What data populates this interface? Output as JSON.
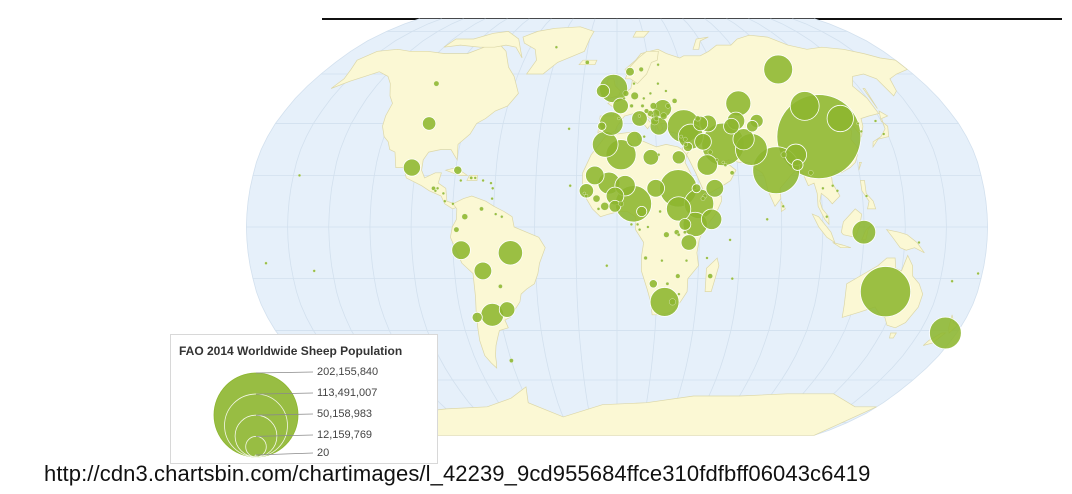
{
  "map": {
    "projection": "robinson",
    "colors": {
      "ocean": "#e6f0fa",
      "land": "#fbf8d4",
      "border": "#dcd7a8",
      "graticule": "#d2e0ee",
      "bubble": "#8db62f",
      "bubble_stroke": "#ffffff"
    }
  },
  "legend": {
    "title": "FAO 2014 Worldwide Sheep Population",
    "entries": [
      {
        "label": "202,155,840",
        "value": 202155840
      },
      {
        "label": "113,491,007",
        "value": 113491007
      },
      {
        "label": "50,158,983",
        "value": 50158983
      },
      {
        "label": "12,159,769",
        "value": 12159769
      },
      {
        "label": "20",
        "value": 20
      }
    ]
  },
  "chart_data": {
    "type": "bubble-map",
    "title": "FAO 2014 Worldwide Sheep Population",
    "size_scale": "sqrt",
    "max_value": 202155840,
    "points": [
      {
        "lon": 104,
        "lat": 35,
        "value": 202155840
      },
      {
        "lon": 79,
        "lat": 22,
        "value": 63000000
      },
      {
        "lon": 134,
        "lat": -25,
        "value": 72600000
      },
      {
        "lon": 54,
        "lat": 32,
        "value": 52000000
      },
      {
        "lon": 8,
        "lat": 9,
        "value": 38000000
      },
      {
        "lon": 30,
        "lat": 15,
        "value": 40000000
      },
      {
        "lon": 35,
        "lat": 39,
        "value": 31000000
      },
      {
        "lon": 68,
        "lat": 30,
        "value": 29000000
      },
      {
        "lon": 2,
        "lat": 28,
        "value": 26000000
      },
      {
        "lon": -2,
        "lat": 54,
        "value": 23000000
      },
      {
        "lon": 100,
        "lat": 62,
        "value": 24000000
      },
      {
        "lon": 174,
        "lat": -41,
        "value": 29000000
      },
      {
        "lon": 40,
        "lat": 9,
        "value": 25000000
      },
      {
        "lon": 46,
        "lat": 3,
        "value": 12000000
      },
      {
        "lon": 38,
        "lat": 1,
        "value": 17000000
      },
      {
        "lon": 24,
        "lat": -29,
        "value": 24000000
      },
      {
        "lon": 67,
        "lat": 48,
        "value": 18000000
      },
      {
        "lon": 65,
        "lat": 34,
        "value": 13000000
      },
      {
        "lon": 103,
        "lat": 47,
        "value": 24000000
      },
      {
        "lon": 90,
        "lat": 28,
        "value": 13000000
      },
      {
        "lon": 35,
        "lat": -6,
        "value": 7000000
      },
      {
        "lon": -52,
        "lat": -10,
        "value": 17000000
      },
      {
        "lon": -64,
        "lat": -34,
        "value": 15000000
      },
      {
        "lon": -6,
        "lat": 32,
        "value": 19000000
      },
      {
        "lon": 4,
        "lat": 16,
        "value": 12000000
      },
      {
        "lon": -4,
        "lat": 17,
        "value": 14000000
      },
      {
        "lon": -11,
        "lat": 20,
        "value": 10000000
      },
      {
        "lon": 44,
        "lat": 33,
        "value": 8000000
      },
      {
        "lon": 45,
        "lat": 24,
        "value": 12000000
      },
      {
        "lon": 19,
        "lat": 15,
        "value": 9000000
      },
      {
        "lon": 9,
        "lat": 34,
        "value": 7000000
      },
      {
        "lon": 17,
        "lat": 27,
        "value": 7000000
      },
      {
        "lon": 31,
        "lat": 27,
        "value": 5000000
      },
      {
        "lon": -3,
        "lat": 40,
        "value": 16000000
      },
      {
        "lon": 12,
        "lat": 42,
        "value": 7000000
      },
      {
        "lon": 22,
        "lat": 39,
        "value": 9000000
      },
      {
        "lon": 44,
        "lat": 40,
        "value": 6000000
      },
      {
        "lon": 60,
        "lat": 39,
        "value": 7000000
      },
      {
        "lon": 74,
        "lat": 41,
        "value": 5000000
      },
      {
        "lon": 63,
        "lat": 41,
        "value": 9000000
      },
      {
        "lon": 48,
        "lat": 40,
        "value": 8000000
      },
      {
        "lon": 119,
        "lat": 42,
        "value": 20000000
      },
      {
        "lon": 84,
        "lat": 28,
        "value": 1000000
      },
      {
        "lon": 120,
        "lat": -2,
        "value": 16000000
      },
      {
        "lon": -99,
        "lat": 40,
        "value": 5200000
      },
      {
        "lon": -102,
        "lat": 23,
        "value": 8500000
      },
      {
        "lon": -74,
        "lat": 4,
        "value": 1000000
      },
      {
        "lon": -72,
        "lat": -35,
        "value": 3000000
      },
      {
        "lon": -56,
        "lat": -32,
        "value": 7000000
      },
      {
        "lon": -66,
        "lat": -17,
        "value": 9000000
      },
      {
        "lon": -76,
        "lat": -9,
        "value": 10000000
      },
      {
        "lon": 46,
        "lat": -19,
        "value": 700000
      },
      {
        "lon": 14,
        "lat": -12,
        "value": 400000
      },
      {
        "lon": 30,
        "lat": -19,
        "value": 600000
      },
      {
        "lon": 18,
        "lat": -22,
        "value": 2000000
      },
      {
        "lon": 25,
        "lat": -22,
        "value": 300000
      },
      {
        "lon": 22,
        "lat": -13,
        "value": 100000
      },
      {
        "lon": 34,
        "lat": -13,
        "value": 200000
      },
      {
        "lon": 29,
        "lat": -2,
        "value": 700000
      },
      {
        "lon": 33,
        "lat": 1,
        "value": 4000000
      },
      {
        "lon": 33,
        "lat": -2,
        "value": 300000
      },
      {
        "lon": 24,
        "lat": -3,
        "value": 900000
      },
      {
        "lon": 15,
        "lat": 0,
        "value": 100000
      },
      {
        "lon": 21,
        "lat": 6,
        "value": 250000
      },
      {
        "lon": 12,
        "lat": 6,
        "value": 3000000
      },
      {
        "lon": 2,
        "lat": 9,
        "value": 800000
      },
      {
        "lon": -1,
        "lat": 8,
        "value": 4000000
      },
      {
        "lon": -6,
        "lat": 8,
        "value": 1800000
      },
      {
        "lon": -1,
        "lat": 12,
        "value": 9000000
      },
      {
        "lon": -10,
        "lat": 11,
        "value": 1400000
      },
      {
        "lon": -15,
        "lat": 14,
        "value": 6000000
      },
      {
        "lon": -16,
        "lat": 13,
        "value": 200000
      },
      {
        "lon": -9,
        "lat": 7,
        "value": 250000
      },
      {
        "lon": -15,
        "lat": 12,
        "value": 350000
      },
      {
        "lon": 43,
        "lat": 12,
        "value": 500000
      },
      {
        "lon": 39,
        "lat": 15,
        "value": 2300000
      },
      {
        "lon": 48,
        "lat": 15,
        "value": 9000000
      },
      {
        "lon": 57,
        "lat": 21,
        "value": 500000
      },
      {
        "lon": 54,
        "lat": 24,
        "value": 300000
      },
      {
        "lon": 36,
        "lat": 31,
        "value": 2500000
      },
      {
        "lon": 38,
        "lat": 35,
        "value": 18000000
      },
      {
        "lon": 2,
        "lat": 47,
        "value": 7000000
      },
      {
        "lon": 10,
        "lat": 51,
        "value": 1600000
      },
      {
        "lon": 19,
        "lat": 52,
        "value": 200000
      },
      {
        "lon": 25,
        "lat": 46,
        "value": 9000000
      },
      {
        "lon": 32,
        "lat": 49,
        "value": 700000
      },
      {
        "lon": 20,
        "lat": 47,
        "value": 1200000
      },
      {
        "lon": 25,
        "lat": 43,
        "value": 1300000
      },
      {
        "lon": 21,
        "lat": 44,
        "value": 1700000
      },
      {
        "lon": 16,
        "lat": 45,
        "value": 600000
      },
      {
        "lon": 28,
        "lat": 53,
        "value": 100000
      },
      {
        "lon": 15,
        "lat": 62,
        "value": 600000
      },
      {
        "lon": 8,
        "lat": 61,
        "value": 2200000
      },
      {
        "lon": 26,
        "lat": 64,
        "value": 100000
      },
      {
        "lon": -8,
        "lat": 53,
        "value": 5000000
      },
      {
        "lon": -19,
        "lat": 65,
        "value": 470000
      },
      {
        "lon": -8,
        "lat": 39,
        "value": 2000000
      },
      {
        "lon": 5,
        "lat": 52,
        "value": 1000000
      },
      {
        "lon": 4,
        "lat": 50,
        "value": 100000
      },
      {
        "lon": 8,
        "lat": 47,
        "value": 400000
      },
      {
        "lon": 14,
        "lat": 47,
        "value": 350000
      },
      {
        "lon": 10,
        "lat": 56,
        "value": 150000
      },
      {
        "lon": 15,
        "lat": 50,
        "value": 200000
      },
      {
        "lon": 24,
        "lat": 56,
        "value": 100000
      },
      {
        "lon": 1,
        "lat": 42,
        "value": 20
      },
      {
        "lon": 12,
        "lat": 43,
        "value": 60000
      },
      {
        "lon": 14,
        "lat": 35,
        "value": 12000
      },
      {
        "lon": 33,
        "lat": 35,
        "value": 300000
      },
      {
        "lon": 20,
        "lat": 41,
        "value": 1800000
      },
      {
        "lon": 21,
        "lat": 42,
        "value": 700000
      },
      {
        "lon": 19,
        "lat": 43,
        "value": 200000
      },
      {
        "lon": 18,
        "lat": 44,
        "value": 1000000
      },
      {
        "lon": 28,
        "lat": 47,
        "value": 700000
      },
      {
        "lon": 43,
        "lat": 42,
        "value": 800000
      },
      {
        "lon": 53,
        "lat": 25,
        "value": 50000
      },
      {
        "lon": 50,
        "lat": 26,
        "value": 40000
      },
      {
        "lon": 47,
        "lat": 29,
        "value": 600000
      },
      {
        "lon": 35,
        "lat": 34,
        "value": 500000
      },
      {
        "lon": 35,
        "lat": 32,
        "value": 450000
      },
      {
        "lon": 71,
        "lat": 39,
        "value": 3800000
      },
      {
        "lon": 81,
        "lat": 8,
        "value": 10000
      },
      {
        "lon": 90,
        "lat": 24,
        "value": 3400000
      },
      {
        "lon": 96,
        "lat": 21,
        "value": 700000
      },
      {
        "lon": 101,
        "lat": 15,
        "value": 50000
      },
      {
        "lon": 106,
        "lat": 16,
        "value": 10000
      },
      {
        "lon": 108,
        "lat": 14,
        "value": 100000
      },
      {
        "lon": 102,
        "lat": 4,
        "value": 120000
      },
      {
        "lon": 122,
        "lat": 12,
        "value": 30000
      },
      {
        "lon": 127,
        "lat": 37,
        "value": 20000
      },
      {
        "lon": 138,
        "lat": 36,
        "value": 15000
      },
      {
        "lon": 127,
        "lat": 40,
        "value": 200000
      },
      {
        "lon": 147,
        "lat": -6,
        "value": 10000
      },
      {
        "lon": 178,
        "lat": -18,
        "value": 10000
      },
      {
        "lon": 166,
        "lat": -21,
        "value": 2000
      },
      {
        "lon": -172,
        "lat": -14,
        "value": 10000
      },
      {
        "lon": -149,
        "lat": -17,
        "value": 500
      },
      {
        "lon": -157,
        "lat": 20,
        "value": 30000
      },
      {
        "lon": -42,
        "lat": 72,
        "value": 20000
      },
      {
        "lon": -60,
        "lat": -52,
        "value": 500000
      },
      {
        "lon": -106,
        "lat": 56,
        "value": 800000
      },
      {
        "lon": -85,
        "lat": 13,
        "value": 6000
      },
      {
        "lon": -88,
        "lat": 15,
        "value": 15000
      },
      {
        "lon": -90,
        "lat": 15,
        "value": 500000
      },
      {
        "lon": -89,
        "lat": 14,
        "value": 5000
      },
      {
        "lon": -84,
        "lat": 10,
        "value": 3000
      },
      {
        "lon": -80,
        "lat": 9,
        "value": 1000
      },
      {
        "lon": -79,
        "lat": 22,
        "value": 2000000
      },
      {
        "lon": -72,
        "lat": 19,
        "value": 300000
      },
      {
        "lon": -70,
        "lat": 19,
        "value": 150000
      },
      {
        "lon": -77,
        "lat": 18,
        "value": 2000
      },
      {
        "lon": -66,
        "lat": 18,
        "value": 10000
      },
      {
        "lon": -61,
        "lat": 11,
        "value": 3000
      },
      {
        "lon": -61,
        "lat": 15,
        "value": 2000
      },
      {
        "lon": -62,
        "lat": 17,
        "value": 12000
      },
      {
        "lon": -66,
        "lat": 7,
        "value": 500000
      },
      {
        "lon": -59,
        "lat": 5,
        "value": 130000
      },
      {
        "lon": -56,
        "lat": 4,
        "value": 8000
      },
      {
        "lon": -78,
        "lat": -1,
        "value": 800000
      },
      {
        "lon": -58,
        "lat": -23,
        "value": 500000
      },
      {
        "lon": -23,
        "lat": 16,
        "value": 10000
      },
      {
        "lon": -25,
        "lat": 38,
        "value": 5000
      },
      {
        "lon": -5,
        "lat": -15,
        "value": 1000
      },
      {
        "lon": 7,
        "lat": 1,
        "value": 3000
      },
      {
        "lon": 10,
        "lat": 1,
        "value": 180000
      },
      {
        "lon": 11,
        "lat": -1,
        "value": 200000
      },
      {
        "lon": 57,
        "lat": -20,
        "value": 3000
      },
      {
        "lon": 44,
        "lat": -12,
        "value": 25000
      },
      {
        "lon": 55,
        "lat": -5,
        "value": 200
      },
      {
        "lon": 73,
        "lat": 3,
        "value": 100
      },
      {
        "lon": 31,
        "lat": -26,
        "value": 30000
      },
      {
        "lon": 28,
        "lat": -29,
        "value": 1200000
      },
      {
        "lon": 30,
        "lat": -3,
        "value": 300000
      },
      {
        "lon": 21,
        "lat": 28,
        "value": 50000
      },
      {
        "lon": 42,
        "lat": 11,
        "value": 500000
      },
      {
        "lon": 30,
        "lat": 7,
        "value": 17000000
      },
      {
        "lon": 137,
        "lat": 41,
        "value": 10000
      }
    ]
  }
}
